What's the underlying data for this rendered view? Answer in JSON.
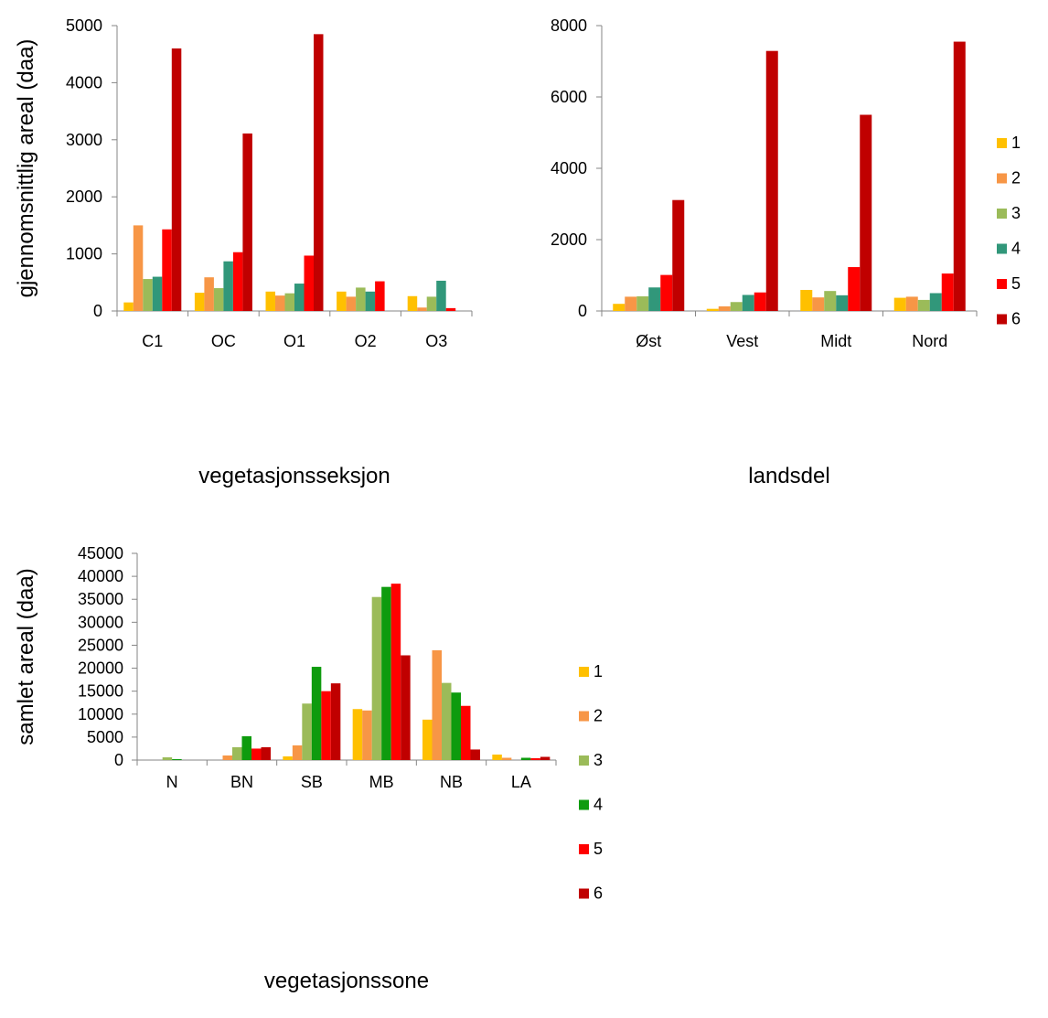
{
  "chart_data": [
    {
      "type": "bar",
      "title": "",
      "xlabel": "vegetasjonsseksjon",
      "ylabel": "gjennomsnittlig areal (daa)",
      "ylim": [
        0,
        5000
      ],
      "yticks": [
        "0",
        "1000",
        "2000",
        "3000",
        "4000",
        "5000"
      ],
      "categories": [
        "C1",
        "OC",
        "O1",
        "O2",
        "O3"
      ],
      "series": [
        {
          "name": "1",
          "color": "#FFC000",
          "values": [
            150,
            320,
            340,
            340,
            260
          ]
        },
        {
          "name": "2",
          "color": "#F79646",
          "values": [
            1500,
            590,
            270,
            250,
            60
          ]
        },
        {
          "name": "3",
          "color": "#9BBB59",
          "values": [
            560,
            400,
            310,
            410,
            250
          ]
        },
        {
          "name": "4",
          "color": "#31977A",
          "values": [
            600,
            870,
            480,
            340,
            530
          ]
        },
        {
          "name": "5",
          "color": "#FF0000",
          "values": [
            1430,
            1030,
            970,
            520,
            50
          ]
        },
        {
          "name": "6",
          "color": "#C00000",
          "values": [
            4600,
            3110,
            4850,
            0,
            0
          ]
        }
      ],
      "legend": "none"
    },
    {
      "type": "bar",
      "title": "",
      "xlabel": "landsdel",
      "ylabel": "",
      "ylim": [
        0,
        8000
      ],
      "yticks": [
        "0",
        "2000",
        "4000",
        "6000",
        "8000"
      ],
      "categories": [
        "Øst",
        "Vest",
        "Midt",
        "Nord"
      ],
      "series": [
        {
          "name": "1",
          "color": "#FFC000",
          "values": [
            200,
            60,
            590,
            370
          ]
        },
        {
          "name": "2",
          "color": "#F79646",
          "values": [
            400,
            130,
            380,
            400
          ]
        },
        {
          "name": "3",
          "color": "#9BBB59",
          "values": [
            410,
            250,
            560,
            310
          ]
        },
        {
          "name": "4",
          "color": "#31977A",
          "values": [
            660,
            450,
            440,
            500
          ]
        },
        {
          "name": "5",
          "color": "#FF0000",
          "values": [
            1010,
            520,
            1230,
            1050
          ]
        },
        {
          "name": "6",
          "color": "#C00000",
          "values": [
            3110,
            7290,
            5500,
            7550
          ]
        }
      ],
      "legend": "right"
    },
    {
      "type": "bar",
      "title": "",
      "xlabel": "vegetasjonssone",
      "ylabel": "samlet areal (daa)",
      "ylim": [
        0,
        45000
      ],
      "yticks": [
        "0",
        "5000",
        "10000",
        "15000",
        "20000",
        "25000",
        "30000",
        "35000",
        "40000",
        "45000"
      ],
      "categories": [
        "N",
        "BN",
        "SB",
        "MB",
        "NB",
        "LA"
      ],
      "series": [
        {
          "name": "1",
          "color": "#FFC000",
          "values": [
            0,
            0,
            800,
            11100,
            8800,
            1200
          ]
        },
        {
          "name": "2",
          "color": "#F79646",
          "values": [
            0,
            1000,
            3200,
            10800,
            23900,
            500
          ]
        },
        {
          "name": "3",
          "color": "#9BBB59",
          "values": [
            600,
            2800,
            12300,
            35500,
            16800,
            0
          ]
        },
        {
          "name": "4",
          "color": "#0E9B0E",
          "values": [
            200,
            5200,
            20300,
            37700,
            14700,
            500
          ]
        },
        {
          "name": "5",
          "color": "#FF0000",
          "values": [
            0,
            2500,
            15000,
            38400,
            11800,
            400
          ]
        },
        {
          "name": "6",
          "color": "#C00000",
          "values": [
            0,
            2800,
            16700,
            22800,
            2300,
            700
          ]
        }
      ],
      "legend": "right"
    }
  ]
}
